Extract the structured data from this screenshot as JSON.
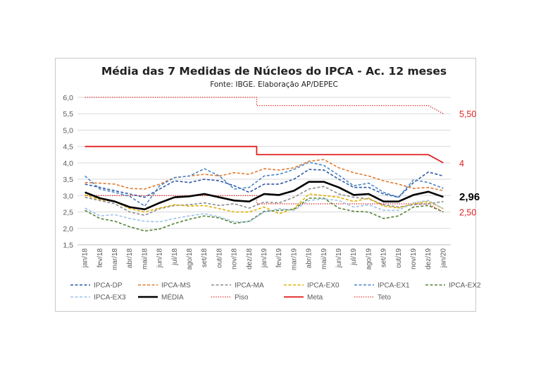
{
  "chart_data": {
    "type": "line",
    "title": "Média das 7 Medidas de Núcleos do IPCA - Ac. 12 meses",
    "subtitle": "Fonte: IBGE. Elaboração AP/DEPEC",
    "ylim": [
      1.5,
      6.0
    ],
    "yticks": [
      "1,5",
      "2,0",
      "2,5",
      "3,0",
      "3,5",
      "4,0",
      "4,5",
      "5,0",
      "5,5",
      "6,0"
    ],
    "ytick_values": [
      1.5,
      2.0,
      2.5,
      3.0,
      3.5,
      4.0,
      4.5,
      5.0,
      5.5,
      6.0
    ],
    "grid": "horizontal",
    "legend_position": "bottom",
    "categories": [
      "jan/18",
      "fev/18",
      "mar/18",
      "abr/18",
      "mai/18",
      "jun/18",
      "jul/18",
      "ago/18",
      "set/18",
      "out/18",
      "nov/18",
      "dez/18",
      "jan/19",
      "fev/19",
      "mar/19",
      "abr/19",
      "mai/19",
      "jun/19",
      "jul/19",
      "ago/19",
      "set/19",
      "out/19",
      "nov/19",
      "dez/19",
      "jan/20"
    ],
    "series": [
      {
        "name": "IPCA-DP",
        "color": "#2e59a8",
        "style": "dashed",
        "values": [
          3.35,
          3.25,
          3.15,
          3.05,
          2.95,
          3.2,
          3.45,
          3.4,
          3.5,
          3.45,
          3.3,
          3.1,
          3.35,
          3.35,
          3.5,
          3.8,
          3.78,
          3.5,
          3.25,
          3.25,
          3.05,
          2.95,
          3.4,
          3.72,
          3.6
        ]
      },
      {
        "name": "IPCA-MS",
        "color": "#e07b2f",
        "style": "dashed",
        "values": [
          3.4,
          3.38,
          3.35,
          3.22,
          3.2,
          3.35,
          3.55,
          3.6,
          3.65,
          3.6,
          3.7,
          3.65,
          3.82,
          3.78,
          3.85,
          4.05,
          4.1,
          3.85,
          3.7,
          3.6,
          3.45,
          3.35,
          3.22,
          3.25,
          3.15
        ]
      },
      {
        "name": "IPCA-MA",
        "color": "#8c8c8c",
        "style": "dashed",
        "values": [
          2.95,
          2.85,
          2.75,
          2.5,
          2.4,
          2.6,
          2.7,
          2.72,
          2.78,
          2.7,
          2.75,
          2.62,
          2.8,
          2.78,
          2.95,
          3.2,
          3.28,
          3.05,
          2.95,
          2.9,
          2.72,
          2.65,
          2.72,
          2.75,
          2.82
        ]
      },
      {
        "name": "IPCA-EX0",
        "color": "#e2b000",
        "style": "dashed",
        "values": [
          3.02,
          2.88,
          2.82,
          2.6,
          2.5,
          2.62,
          2.72,
          2.68,
          2.7,
          2.6,
          2.5,
          2.5,
          2.65,
          2.45,
          2.6,
          3.05,
          3.0,
          2.95,
          2.82,
          2.92,
          2.68,
          2.62,
          2.75,
          2.82,
          2.6
        ]
      },
      {
        "name": "IPCA-EX1",
        "color": "#4a86c5",
        "style": "dashed",
        "values": [
          3.6,
          3.2,
          3.1,
          2.98,
          2.68,
          3.3,
          3.55,
          3.6,
          3.82,
          3.6,
          3.2,
          3.25,
          3.6,
          3.65,
          3.8,
          4.02,
          3.92,
          3.62,
          3.3,
          3.38,
          3.1,
          2.95,
          3.48,
          3.4,
          3.22
        ]
      },
      {
        "name": "IPCA-EX2",
        "color": "#548235",
        "style": "dashed",
        "values": [
          2.55,
          2.3,
          2.22,
          2.05,
          1.92,
          1.98,
          2.15,
          2.28,
          2.38,
          2.32,
          2.15,
          2.22,
          2.52,
          2.55,
          2.58,
          2.92,
          2.92,
          2.62,
          2.52,
          2.5,
          2.3,
          2.38,
          2.65,
          2.7,
          2.5
        ]
      },
      {
        "name": "IPCA-EX3",
        "color": "#9dc3e6",
        "style": "dashed",
        "values": [
          2.62,
          2.38,
          2.42,
          2.3,
          2.22,
          2.2,
          2.3,
          2.38,
          2.45,
          2.35,
          2.2,
          2.2,
          2.5,
          2.6,
          2.55,
          2.85,
          2.9,
          2.85,
          2.65,
          2.72,
          2.55,
          2.55,
          2.78,
          2.85,
          2.6
        ]
      },
      {
        "name": "MÉDIA",
        "color": "#000000",
        "style": "solid-bold",
        "values": [
          3.1,
          2.92,
          2.82,
          2.65,
          2.58,
          2.78,
          2.95,
          2.98,
          3.05,
          2.95,
          2.85,
          2.82,
          3.05,
          3.02,
          3.15,
          3.42,
          3.42,
          3.25,
          3.02,
          3.05,
          2.82,
          2.82,
          3.02,
          3.12,
          2.96
        ]
      },
      {
        "name": "Piso",
        "color": "#e02020",
        "style": "dotted",
        "values": [
          3.0,
          3.0,
          3.0,
          3.0,
          3.0,
          3.0,
          3.0,
          3.0,
          3.0,
          3.0,
          3.0,
          3.0,
          2.75,
          2.75,
          2.75,
          2.75,
          2.75,
          2.75,
          2.75,
          2.75,
          2.75,
          2.75,
          2.75,
          2.75,
          2.5
        ]
      },
      {
        "name": "Meta",
        "color": "#e02020",
        "style": "solid",
        "values": [
          4.5,
          4.5,
          4.5,
          4.5,
          4.5,
          4.5,
          4.5,
          4.5,
          4.5,
          4.5,
          4.5,
          4.5,
          4.25,
          4.25,
          4.25,
          4.25,
          4.25,
          4.25,
          4.25,
          4.25,
          4.25,
          4.25,
          4.25,
          4.25,
          4.0
        ]
      },
      {
        "name": "Teto",
        "color": "#e02020",
        "style": "dotted",
        "values": [
          6.0,
          6.0,
          6.0,
          6.0,
          6.0,
          6.0,
          6.0,
          6.0,
          6.0,
          6.0,
          6.0,
          6.0,
          5.75,
          5.75,
          5.75,
          5.75,
          5.75,
          5.75,
          5.75,
          5.75,
          5.75,
          5.75,
          5.75,
          5.75,
          5.5
        ]
      }
    ],
    "annotations": [
      {
        "text": "5,50",
        "y": 5.5,
        "color": "#e02020",
        "bold": false
      },
      {
        "text": "4",
        "y": 4.0,
        "color": "#e02020",
        "bold": false
      },
      {
        "text": "2,96",
        "y": 2.96,
        "color": "#000000",
        "bold": true
      },
      {
        "text": "2,50",
        "y": 2.5,
        "color": "#e02020",
        "bold": false
      }
    ]
  }
}
